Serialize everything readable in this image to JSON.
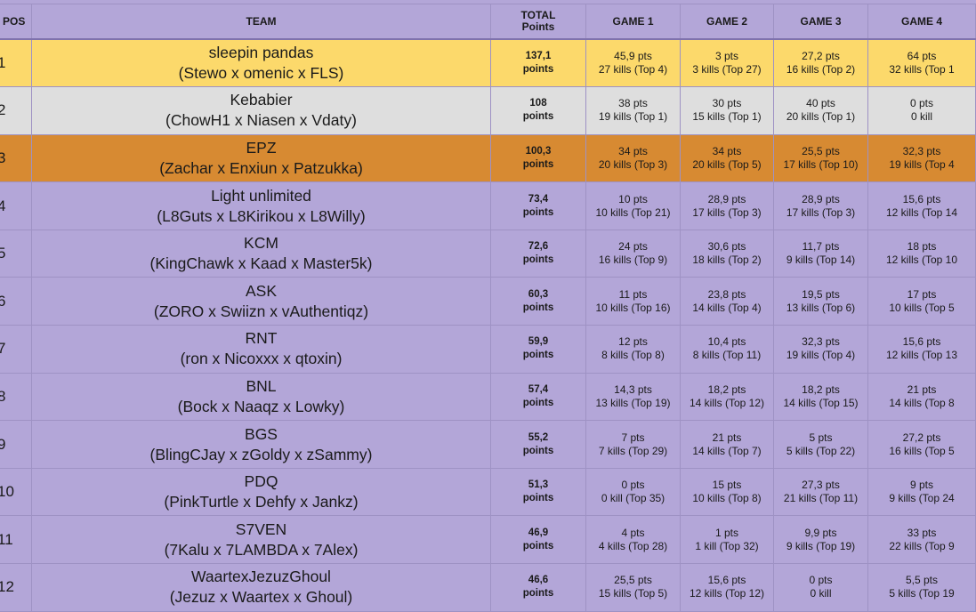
{
  "headers": {
    "pos": "POS",
    "team": "TEAM",
    "total_line1": "TOTAL",
    "total_line2": "Points",
    "games": [
      "GAME 1",
      "GAME 2",
      "GAME 3",
      "GAME 4"
    ]
  },
  "rows": [
    {
      "pos": "1",
      "team": "sleepin pandas",
      "players": "(Stewo x omenic x FLS)",
      "total": "137,1",
      "unit": "points",
      "games": [
        {
          "pts": "45,9 pts",
          "kills": "27 kills (Top 4)"
        },
        {
          "pts": "3 pts",
          "kills": "3 kills (Top 27)"
        },
        {
          "pts": "27,2 pts",
          "kills": "16 kills (Top 2)"
        },
        {
          "pts": "64 pts",
          "kills": "32 kills (Top 1"
        }
      ]
    },
    {
      "pos": "2",
      "team": "Kebabier",
      "players": "(ChowH1 x Niasen x Vdaty)",
      "total": "108",
      "unit": "points",
      "games": [
        {
          "pts": "38 pts",
          "kills": "19 kills (Top 1)"
        },
        {
          "pts": "30 pts",
          "kills": "15 kills (Top 1)"
        },
        {
          "pts": "40 pts",
          "kills": "20 kills (Top 1)"
        },
        {
          "pts": "0 pts",
          "kills": "0 kill"
        }
      ]
    },
    {
      "pos": "3",
      "team": "EPZ",
      "players": "(Zachar x Enxiun x Patzukka)",
      "total": "100,3",
      "unit": "points",
      "games": [
        {
          "pts": "34 pts",
          "kills": "20 kills (Top 3)"
        },
        {
          "pts": "34 pts",
          "kills": "20 kills (Top 5)"
        },
        {
          "pts": "25,5 pts",
          "kills": "17 kills (Top 10)"
        },
        {
          "pts": "32,3 pts",
          "kills": "19 kills (Top 4"
        }
      ]
    },
    {
      "pos": "4",
      "team": "Light unlimited",
      "players": "(L8Guts x L8Kirikou x L8Willy)",
      "total": "73,4",
      "unit": "points",
      "games": [
        {
          "pts": "10 pts",
          "kills": "10 kills (Top 21)"
        },
        {
          "pts": "28,9 pts",
          "kills": "17 kills (Top 3)"
        },
        {
          "pts": "28,9 pts",
          "kills": "17 kills (Top 3)"
        },
        {
          "pts": "15,6 pts",
          "kills": "12 kills (Top 14"
        }
      ]
    },
    {
      "pos": "5",
      "team": "KCM",
      "players": "(KingChawk x Kaad x Master5k)",
      "total": "72,6",
      "unit": "points",
      "games": [
        {
          "pts": "24 pts",
          "kills": "16 kills (Top 9)"
        },
        {
          "pts": "30,6 pts",
          "kills": "18 kills (Top 2)"
        },
        {
          "pts": "11,7 pts",
          "kills": "9 kills (Top 14)"
        },
        {
          "pts": "18 pts",
          "kills": "12 kills (Top 10"
        }
      ]
    },
    {
      "pos": "6",
      "team": "ASK",
      "players": "(ZORO x Swiizn x vAuthentiqz)",
      "total": "60,3",
      "unit": "points",
      "games": [
        {
          "pts": "11 pts",
          "kills": "10 kills (Top 16)"
        },
        {
          "pts": "23,8 pts",
          "kills": "14 kills (Top 4)"
        },
        {
          "pts": "19,5 pts",
          "kills": "13 kills (Top 6)"
        },
        {
          "pts": "17 pts",
          "kills": "10 kills (Top 5"
        }
      ]
    },
    {
      "pos": "7",
      "team": "RNT",
      "players": "(ron x Nicoxxx x qtoxin)",
      "total": "59,9",
      "unit": "points",
      "games": [
        {
          "pts": "12 pts",
          "kills": "8 kills (Top 8)"
        },
        {
          "pts": "10,4 pts",
          "kills": "8 kills (Top 11)"
        },
        {
          "pts": "32,3 pts",
          "kills": "19 kills (Top 4)"
        },
        {
          "pts": "15,6 pts",
          "kills": "12 kills (Top 13"
        }
      ]
    },
    {
      "pos": "8",
      "team": "BNL",
      "players": "(Bock x Naaqz x Lowky)",
      "total": "57,4",
      "unit": "points",
      "games": [
        {
          "pts": "14,3 pts",
          "kills": "13 kills (Top 19)"
        },
        {
          "pts": "18,2 pts",
          "kills": "14 kills (Top 12)"
        },
        {
          "pts": "18,2 pts",
          "kills": "14 kills (Top 15)"
        },
        {
          "pts": "21 pts",
          "kills": "14 kills (Top 8"
        }
      ]
    },
    {
      "pos": "9",
      "team": "BGS",
      "players": "(BlingCJay x zGoldy x zSammy)",
      "total": "55,2",
      "unit": "points",
      "games": [
        {
          "pts": "7 pts",
          "kills": "7 kills (Top 29)"
        },
        {
          "pts": "21 pts",
          "kills": "14 kills (Top 7)"
        },
        {
          "pts": "5 pts",
          "kills": "5 kills (Top 22)"
        },
        {
          "pts": "27,2 pts",
          "kills": "16 kills (Top 5"
        }
      ]
    },
    {
      "pos": "10",
      "team": "PDQ",
      "players": "(PinkTurtle x Dehfy x Jankz)",
      "total": "51,3",
      "unit": "points",
      "games": [
        {
          "pts": "0 pts",
          "kills": "0 kill (Top 35)"
        },
        {
          "pts": "15 pts",
          "kills": "10 kills (Top 8)"
        },
        {
          "pts": "27,3 pts",
          "kills": "21 kills (Top 11)"
        },
        {
          "pts": "9 pts",
          "kills": "9 kills (Top 24"
        }
      ]
    },
    {
      "pos": "11",
      "team": "S7VEN",
      "players": "(7Kalu x 7LAMBDA x 7Alex)",
      "total": "46,9",
      "unit": "points",
      "games": [
        {
          "pts": "4 pts",
          "kills": "4 kills (Top 28)"
        },
        {
          "pts": "1 pts",
          "kills": "1 kill (Top 32)"
        },
        {
          "pts": "9,9 pts",
          "kills": "9 kills (Top 19)"
        },
        {
          "pts": "33 pts",
          "kills": "22 kills (Top 9"
        }
      ]
    },
    {
      "pos": "12",
      "team": "WaartexJezuzGhoul",
      "players": "(Jezuz x Waartex x Ghoul)",
      "total": "46,6",
      "unit": "points",
      "games": [
        {
          "pts": "25,5 pts",
          "kills": "15 kills (Top 5)"
        },
        {
          "pts": "15,6 pts",
          "kills": "12 kills (Top 12)"
        },
        {
          "pts": "0 pts",
          "kills": "0 kill"
        },
        {
          "pts": "5,5 pts",
          "kills": "5 kills (Top 19"
        }
      ]
    }
  ],
  "colors": {
    "background": "#b3a6d8",
    "first_place": "#fcd96b",
    "second_place": "#dedede",
    "third_place": "#d78a32",
    "grid_line": "#9e92c4"
  }
}
